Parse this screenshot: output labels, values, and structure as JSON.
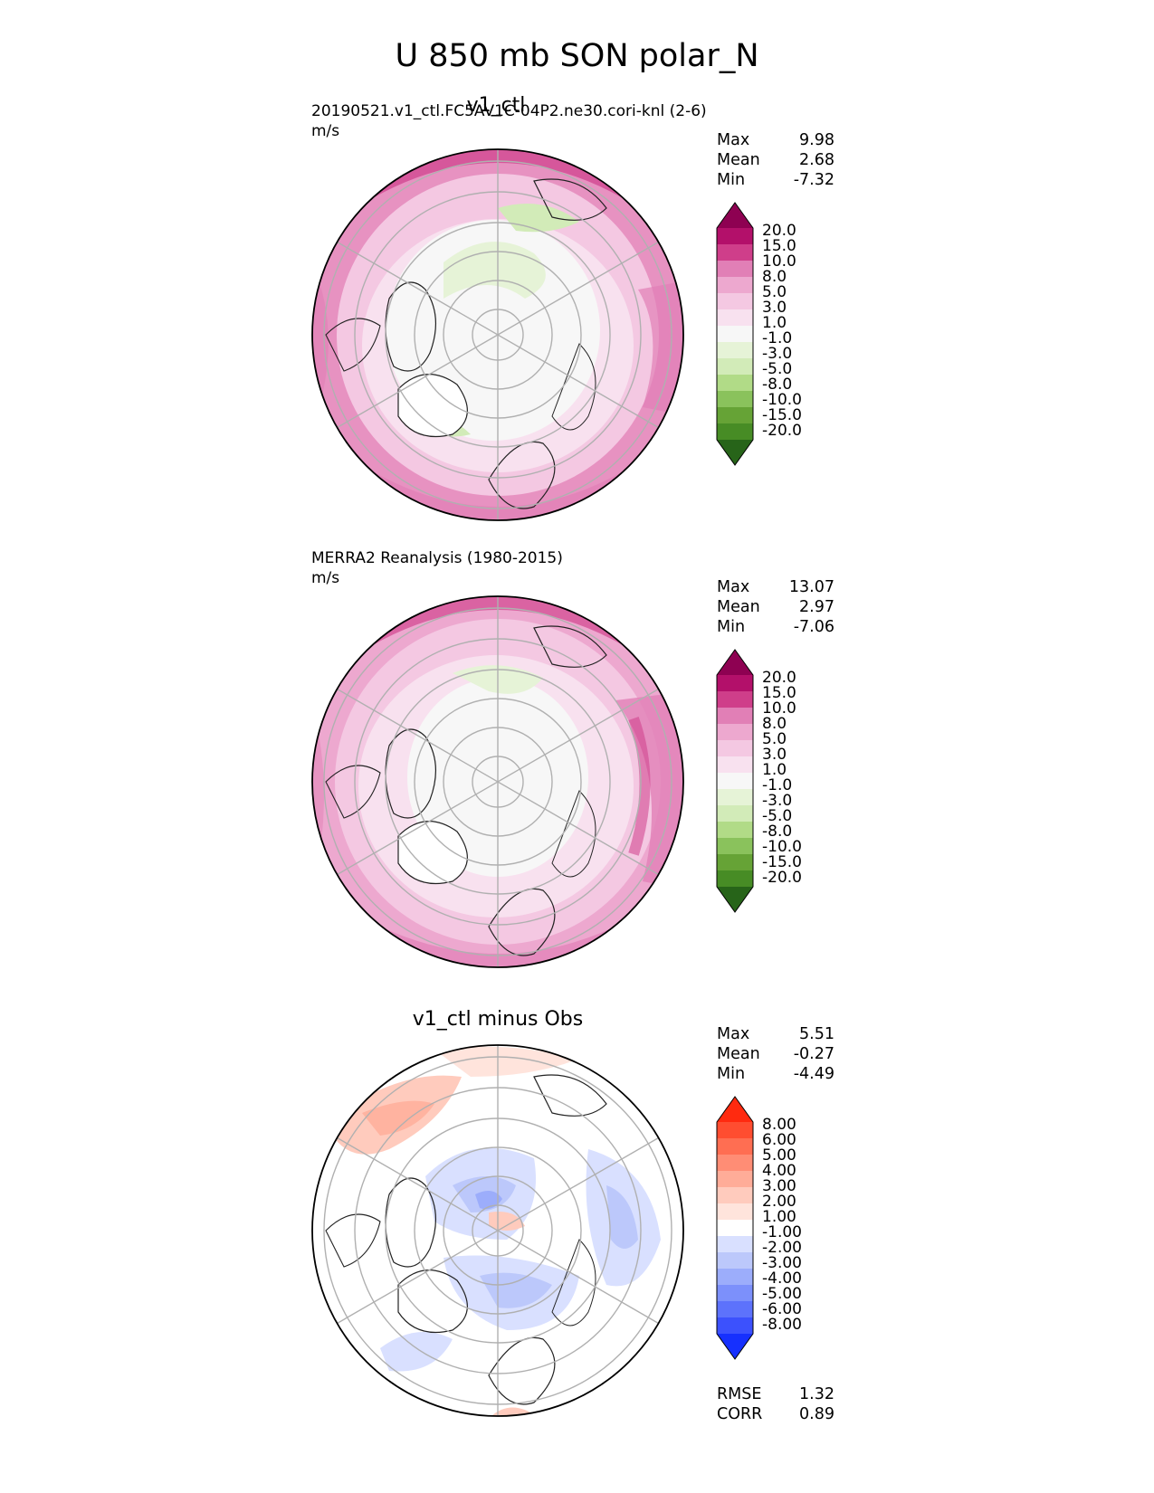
{
  "figure": {
    "title": "U 850 mb SON polar_N"
  },
  "panels": [
    {
      "id": "test",
      "title": "v1_ctl",
      "source": "20190521.v1_ctl.FC5AV1C-04P2.ne30.cori-knl (2-6)",
      "units": "m/s",
      "stats": [
        {
          "label": "Max",
          "value": "9.98"
        },
        {
          "label": "Mean",
          "value": "2.68"
        },
        {
          "label": "Min",
          "value": "-7.32"
        }
      ],
      "colorbar": {
        "labels": [
          "20.0",
          "15.0",
          "10.0",
          "8.0",
          "5.0",
          "3.0",
          "1.0",
          "-1.0",
          "-3.0",
          "-5.0",
          "-8.0",
          "-10.0",
          "-15.0",
          "-20.0"
        ]
      }
    },
    {
      "id": "ref",
      "title": "",
      "source": "MERRA2 Reanalysis (1980-2015)",
      "units": "m/s",
      "stats": [
        {
          "label": "Max",
          "value": "13.07"
        },
        {
          "label": "Mean",
          "value": "2.97"
        },
        {
          "label": "Min",
          "value": "-7.06"
        }
      ],
      "colorbar": {
        "labels": [
          "20.0",
          "15.0",
          "10.0",
          "8.0",
          "5.0",
          "3.0",
          "1.0",
          "-1.0",
          "-3.0",
          "-5.0",
          "-8.0",
          "-10.0",
          "-15.0",
          "-20.0"
        ]
      }
    },
    {
      "id": "diff",
      "title": "v1_ctl minus Obs",
      "source": "",
      "units": "",
      "stats": [
        {
          "label": "Max",
          "value": "5.51"
        },
        {
          "label": "Mean",
          "value": "-0.27"
        },
        {
          "label": "Min",
          "value": "-4.49"
        }
      ],
      "colorbar": {
        "labels": [
          "8.00",
          "6.00",
          "5.00",
          "4.00",
          "3.00",
          "2.00",
          "1.00",
          "-1.00",
          "-2.00",
          "-3.00",
          "-4.00",
          "-5.00",
          "-6.00",
          "-8.00"
        ]
      },
      "error_metrics": [
        {
          "label": "RMSE",
          "value": "1.32"
        },
        {
          "label": "CORR",
          "value": "0.89"
        }
      ]
    }
  ],
  "colors": {
    "piyg": [
      "#8e0152",
      "#b3106a",
      "#cf3e8a",
      "#e17fb6",
      "#eda8cf",
      "#f4c8e2",
      "#f8e1ef",
      "#f7f7f7",
      "#e6f3d7",
      "#d2ebb8",
      "#b1db87",
      "#8ac25c",
      "#66a336",
      "#478c25",
      "#276419"
    ],
    "diverge": [
      "#ff2a0f",
      "#ff4d30",
      "#ff6e52",
      "#ff8d75",
      "#ffac98",
      "#ffcbbd",
      "#ffe4dc",
      "#ffffff",
      "#d9e0ff",
      "#bcc8fb",
      "#9cadfb",
      "#7c90fb",
      "#5d72fc",
      "#3c51fd",
      "#1630fe"
    ]
  },
  "chart_data": [
    {
      "type": "heatmap",
      "title": "v1_ctl",
      "projection": "polar stereographic (North Pole)",
      "units": "m/s",
      "contour_levels": [
        -20.0,
        -15.0,
        -10.0,
        -8.0,
        -5.0,
        -3.0,
        -1.0,
        1.0,
        3.0,
        5.0,
        8.0,
        10.0,
        15.0,
        20.0
      ],
      "stats": {
        "max": 9.98,
        "mean": 2.68,
        "min": -7.32
      }
    },
    {
      "type": "heatmap",
      "title": "MERRA2 Reanalysis (1980-2015)",
      "projection": "polar stereographic (North Pole)",
      "units": "m/s",
      "contour_levels": [
        -20.0,
        -15.0,
        -10.0,
        -8.0,
        -5.0,
        -3.0,
        -1.0,
        1.0,
        3.0,
        5.0,
        8.0,
        10.0,
        15.0,
        20.0
      ],
      "stats": {
        "max": 13.07,
        "mean": 2.97,
        "min": -7.06
      }
    },
    {
      "type": "heatmap",
      "title": "v1_ctl minus Obs",
      "projection": "polar stereographic (North Pole)",
      "contour_levels": [
        -8.0,
        -6.0,
        -5.0,
        -4.0,
        -3.0,
        -2.0,
        -1.0,
        1.0,
        2.0,
        3.0,
        4.0,
        5.0,
        6.0,
        8.0
      ],
      "stats": {
        "max": 5.51,
        "mean": -0.27,
        "min": -4.49
      },
      "rmse": 1.32,
      "corr": 0.89
    }
  ]
}
